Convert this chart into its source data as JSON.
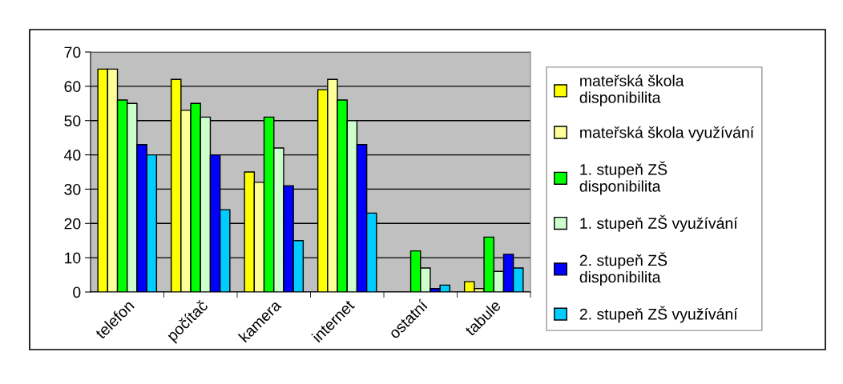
{
  "chart_data": {
    "type": "bar",
    "categories": [
      "telefon",
      "počítač",
      "kamera",
      "internet",
      "ostatní",
      "tabule"
    ],
    "series": [
      {
        "name": "mateřská škola disponibilita",
        "color": "#ffff00",
        "values": [
          65,
          62,
          35,
          59,
          null,
          3
        ]
      },
      {
        "name": "mateřská škola využívání",
        "color": "#ffff99",
        "values": [
          65,
          53,
          32,
          62,
          null,
          1
        ]
      },
      {
        "name": "1. stupeň ZŠ disponibilita",
        "color": "#00ff00",
        "values": [
          56,
          55,
          51,
          56,
          12,
          16
        ]
      },
      {
        "name": "1. stupeň ZŠ využívání",
        "color": "#ccffcc",
        "values": [
          55,
          51,
          42,
          50,
          7,
          6
        ]
      },
      {
        "name": "2. stupeň ZŠ disponibilita",
        "color": "#0000ff",
        "values": [
          43,
          40,
          31,
          43,
          1,
          11
        ]
      },
      {
        "name": "2. stupeň ZŠ využívání",
        "color": "#00ccff",
        "values": [
          40,
          24,
          15,
          23,
          2,
          7
        ]
      }
    ],
    "ylim": [
      0,
      70
    ],
    "yticks": [
      0,
      10,
      20,
      30,
      40,
      50,
      60,
      70
    ],
    "grid": "y",
    "legend": "right"
  }
}
